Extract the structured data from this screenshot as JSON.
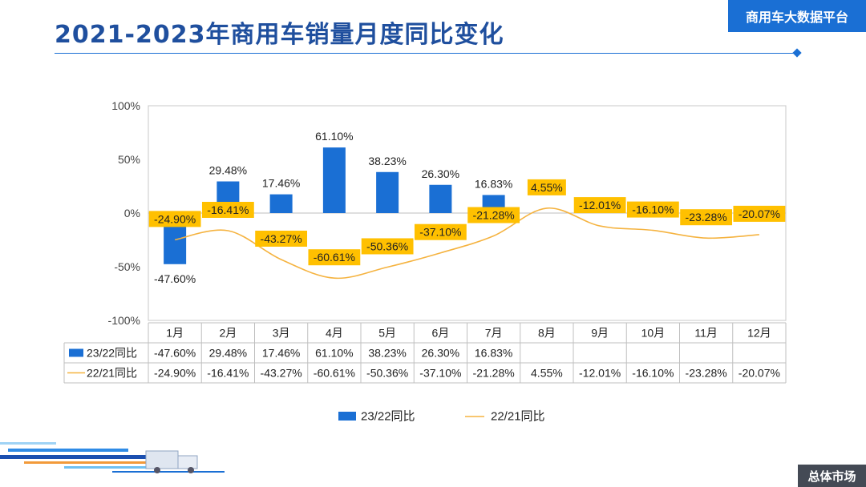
{
  "page": {
    "title": "2021-2023年商用车销量月度同比变化",
    "badge": "商用车大数据平台",
    "footer_tag": "总体市场"
  },
  "colors": {
    "bar": "#1a6fd4",
    "line": "#f5b340",
    "label_box": "#ffc000",
    "accent": "#1f4f9e"
  },
  "chart_data": {
    "type": "bar",
    "categories": [
      "1月",
      "2月",
      "3月",
      "4月",
      "5月",
      "6月",
      "7月",
      "8月",
      "9月",
      "10月",
      "11月",
      "12月"
    ],
    "y_ticks": [
      "100%",
      "50%",
      "0%",
      "-50%",
      "-100%"
    ],
    "ylim": [
      -100,
      100
    ],
    "grid": false,
    "legend": "bottom",
    "series": [
      {
        "name": "23/22同比",
        "kind": "bar",
        "values": [
          -47.6,
          29.48,
          17.46,
          61.1,
          38.23,
          26.3,
          16.83,
          null,
          null,
          null,
          null,
          null
        ],
        "labels": [
          "-47.60%",
          "29.48%",
          "17.46%",
          "61.10%",
          "38.23%",
          "26.30%",
          "16.83%",
          "",
          "",
          "",
          "",
          ""
        ]
      },
      {
        "name": "22/21同比",
        "kind": "line",
        "values": [
          -24.9,
          -16.41,
          -43.27,
          -60.61,
          -50.36,
          -37.1,
          -21.28,
          4.55,
          -12.01,
          -16.1,
          -23.28,
          -20.07
        ],
        "labels": [
          "-24.90%",
          "-16.41%",
          "-43.27%",
          "-60.61%",
          "-50.36%",
          "-37.10%",
          "-21.28%",
          "4.55%",
          "-12.01%",
          "-16.10%",
          "-23.28%",
          "-20.07%"
        ]
      }
    ]
  }
}
